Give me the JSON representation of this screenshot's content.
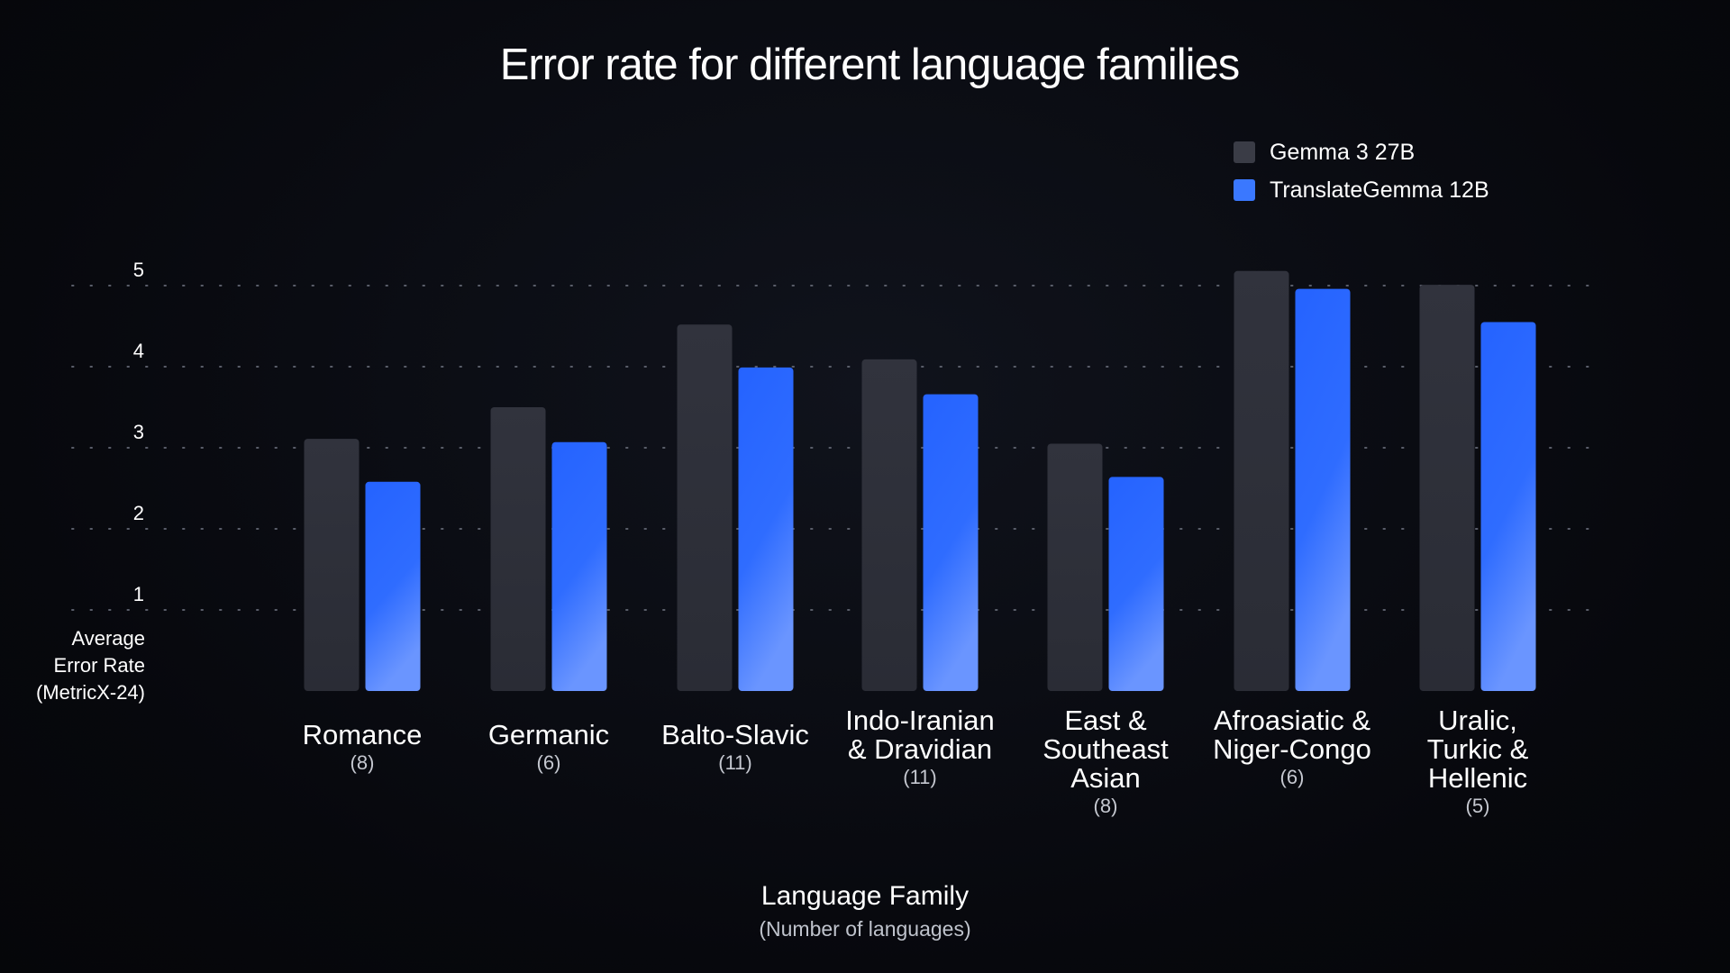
{
  "chart_data": {
    "type": "bar",
    "title": "Error rate for different language families",
    "xlabel": "Language Family",
    "xlabel_sub": "(Number of languages)",
    "ylabel": [
      "Average",
      "Error Rate",
      "(MetricX-24)"
    ],
    "ylim": [
      0,
      5
    ],
    "yticks": [
      1,
      2,
      3,
      4,
      5
    ],
    "grid": true,
    "legend_position": "top-right",
    "categories": [
      {
        "label": [
          "Romance"
        ],
        "count": "(8)"
      },
      {
        "label": [
          "Germanic"
        ],
        "count": "(6)"
      },
      {
        "label": [
          "Balto-Slavic"
        ],
        "count": "(11)"
      },
      {
        "label": [
          "Indo-Iranian",
          "& Dravidian"
        ],
        "count": "(11)"
      },
      {
        "label": [
          "East &",
          "Southeast",
          "Asian"
        ],
        "count": "(8)"
      },
      {
        "label": [
          "Afroasiatic &",
          "Niger-Congo"
        ],
        "count": "(6)"
      },
      {
        "label": [
          "Uralic,",
          "Turkic &",
          "Hellenic"
        ],
        "count": "(5)"
      }
    ],
    "series": [
      {
        "name": "Gemma 3 27B",
        "color": "#2f313b",
        "values": [
          3.11,
          3.5,
          4.52,
          4.09,
          3.05,
          5.18,
          5.01
        ]
      },
      {
        "name": "TranslateGemma 12B",
        "color": "#2b6bff",
        "values": [
          2.58,
          3.07,
          3.99,
          3.66,
          2.64,
          4.96,
          4.55
        ]
      }
    ]
  }
}
